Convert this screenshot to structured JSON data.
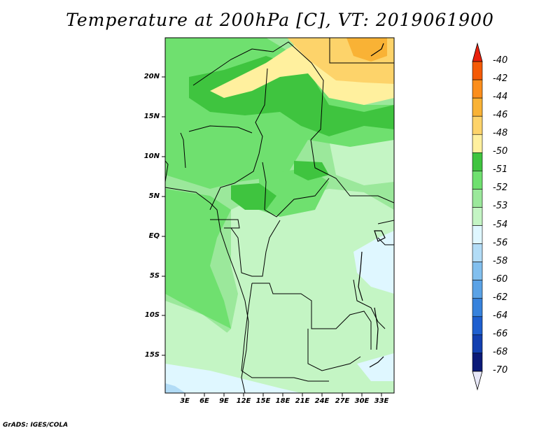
{
  "title": "Temperature at 200hPa [C], VT: 2019061900",
  "credit": "GrADS: IGES/COLA",
  "y_axis_labels": [
    "20N",
    "15N",
    "10N",
    "5N",
    "EQ",
    "5S",
    "10S",
    "15S"
  ],
  "x_axis_labels": [
    "3E",
    "6E",
    "9E",
    "12E",
    "15E",
    "18E",
    "21E",
    "24E",
    "27E",
    "30E",
    "33E"
  ],
  "colorbar": {
    "levels": [
      {
        "label": "-40",
        "color": "#e8200c"
      },
      {
        "label": "-42",
        "color": "#f45a06"
      },
      {
        "label": "-44",
        "color": "#fb8e1c"
      },
      {
        "label": "-46",
        "color": "#f9b235"
      },
      {
        "label": "-48",
        "color": "#fdd36a"
      },
      {
        "label": "-50",
        "color": "#fff09e"
      },
      {
        "label": "-51",
        "color": "#3fc43f"
      },
      {
        "label": "-52",
        "color": "#6fe06f"
      },
      {
        "label": "-53",
        "color": "#9be89b"
      },
      {
        "label": "-54",
        "color": "#c4f5c4"
      },
      {
        "label": "-56",
        "color": "#dff7ff"
      },
      {
        "label": "-58",
        "color": "#b2dcf6"
      },
      {
        "label": "-60",
        "color": "#82bfee"
      },
      {
        "label": "-62",
        "color": "#5aa2e6"
      },
      {
        "label": "-64",
        "color": "#3782dc"
      },
      {
        "label": "-66",
        "color": "#1e5fcf"
      },
      {
        "label": "-68",
        "color": "#123fb0"
      },
      {
        "label": "-70",
        "color": "#0b1a78"
      }
    ],
    "under_color": "#e8e8f8"
  }
}
